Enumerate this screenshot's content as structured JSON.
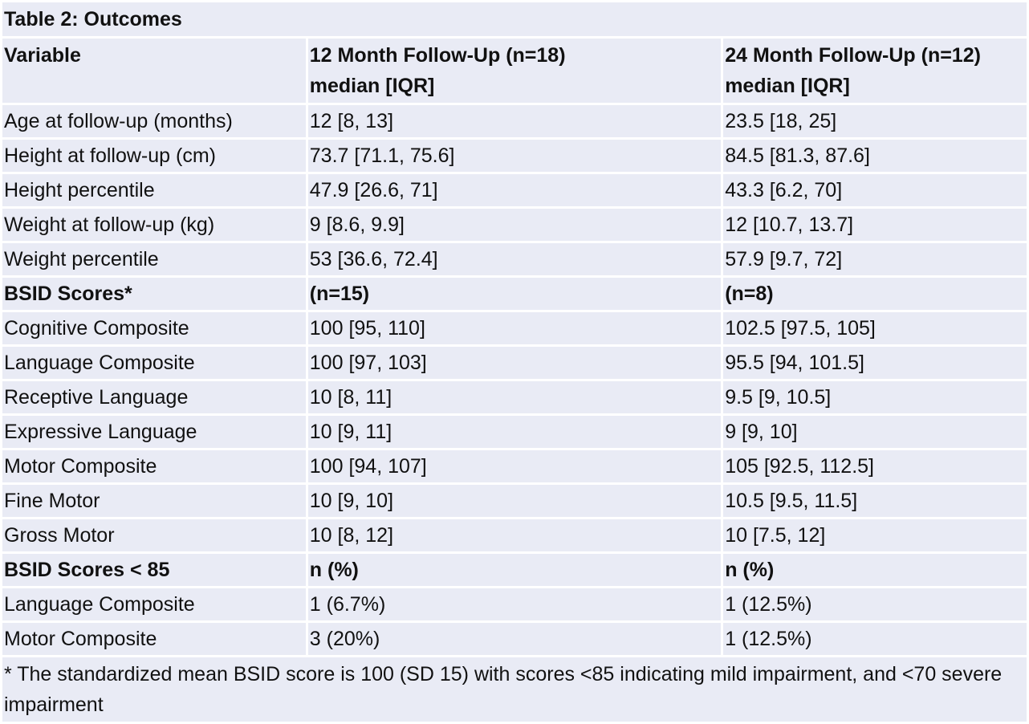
{
  "title": "Table 2: Outcomes",
  "header": {
    "variable": "Variable",
    "col12": {
      "line1": "12 Month Follow-Up (n=18)",
      "line2": "median [IQR]"
    },
    "col24": {
      "line1": "24 Month Follow-Up (n=12)",
      "line2": "median [IQR]"
    }
  },
  "rows": [
    {
      "label": "Age at follow-up (months)",
      "m12": "12 [8, 13]",
      "m24": "23.5 [18, 25]",
      "section": false
    },
    {
      "label": "Height at follow-up (cm)",
      "m12": "73.7 [71.1, 75.6]",
      "m24": "84.5 [81.3, 87.6]",
      "section": false
    },
    {
      "label": "Height percentile",
      "m12": "47.9 [26.6, 71]",
      "m24": "43.3 [6.2, 70]",
      "section": false
    },
    {
      "label": "Weight at follow-up (kg)",
      "m12": "9 [8.6, 9.9]",
      "m24": "12 [10.7, 13.7]",
      "section": false
    },
    {
      "label": "Weight percentile",
      "m12": "53 [36.6, 72.4]",
      "m24": "57.9 [9.7, 72]",
      "section": false
    },
    {
      "label": "BSID Scores*",
      "m12": "(n=15)",
      "m24": "(n=8)",
      "section": true
    },
    {
      "label": "Cognitive Composite",
      "m12": "100 [95, 110]",
      "m24": "102.5 [97.5, 105]",
      "section": false
    },
    {
      "label": "Language Composite",
      "m12": "100 [97, 103]",
      "m24": "95.5 [94, 101.5]",
      "section": false
    },
    {
      "label": "Receptive Language",
      "m12": "10 [8, 11]",
      "m24": "9.5 [9, 10.5]",
      "section": false
    },
    {
      "label": "Expressive Language",
      "m12": "10 [9, 11]",
      "m24": "9 [9, 10]",
      "section": false
    },
    {
      "label": "Motor Composite",
      "m12": "100 [94, 107]",
      "m24": "105 [92.5, 112.5]",
      "section": false
    },
    {
      "label": "Fine Motor",
      "m12": "10 [9, 10]",
      "m24": "10.5 [9.5, 11.5]",
      "section": false
    },
    {
      "label": "Gross Motor",
      "m12": "10 [8, 12]",
      "m24": "10 [7.5, 12]",
      "section": false
    },
    {
      "label": "BSID Scores < 85",
      "m12": "n (%)",
      "m24": "n (%)",
      "section": true
    },
    {
      "label": "Language Composite",
      "m12": "1 (6.7%)",
      "m24": "1 (12.5%)",
      "section": false
    },
    {
      "label": "Motor Composite",
      "m12": "3 (20%)",
      "m24": "1 (12.5%)",
      "section": false
    }
  ],
  "footnote": "* The standardized mean BSID score is 100 (SD 15) with scores <85 indicating mild impairment, and <70 severe impairment"
}
